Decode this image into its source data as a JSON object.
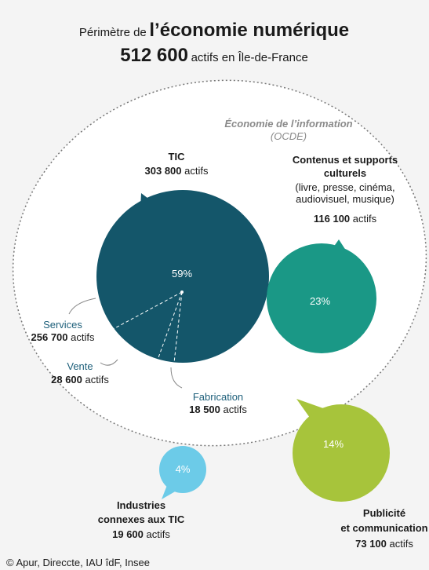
{
  "header": {
    "prefix": "Périmètre de",
    "main": "l’économie numérique",
    "total": "512 600",
    "total_suffix": "actifs en Île-de-France"
  },
  "region": {
    "label": "Économie de l’information",
    "sub": "(OCDE)"
  },
  "tic": {
    "name": "TIC",
    "count": "303 800",
    "unit": "actifs",
    "percent": "59%",
    "parts": [
      {
        "name": "Services",
        "count": "256 700",
        "unit": "actifs"
      },
      {
        "name": "Vente",
        "count": "28 600",
        "unit": "actifs"
      },
      {
        "name": "Fabrication",
        "count": "18 500",
        "unit": "actifs"
      }
    ]
  },
  "culture": {
    "name_lines": [
      "Contenus et supports",
      "culturels"
    ],
    "detail_lines": [
      "(livre, presse, cinéma,",
      "audiovisuel, musique)"
    ],
    "count": "116 100",
    "unit": "actifs",
    "percent": "23%"
  },
  "pub": {
    "name_lines": [
      "Publicité",
      "et communication"
    ],
    "count": "73 100",
    "unit": "actifs",
    "percent": "14%"
  },
  "connexes": {
    "name_lines": [
      "Industries",
      "connexes aux TIC"
    ],
    "count": "19 600",
    "unit": "actifs",
    "percent": "4%"
  },
  "source": "© Apur, Direccte, IAU îdF, Insee"
}
